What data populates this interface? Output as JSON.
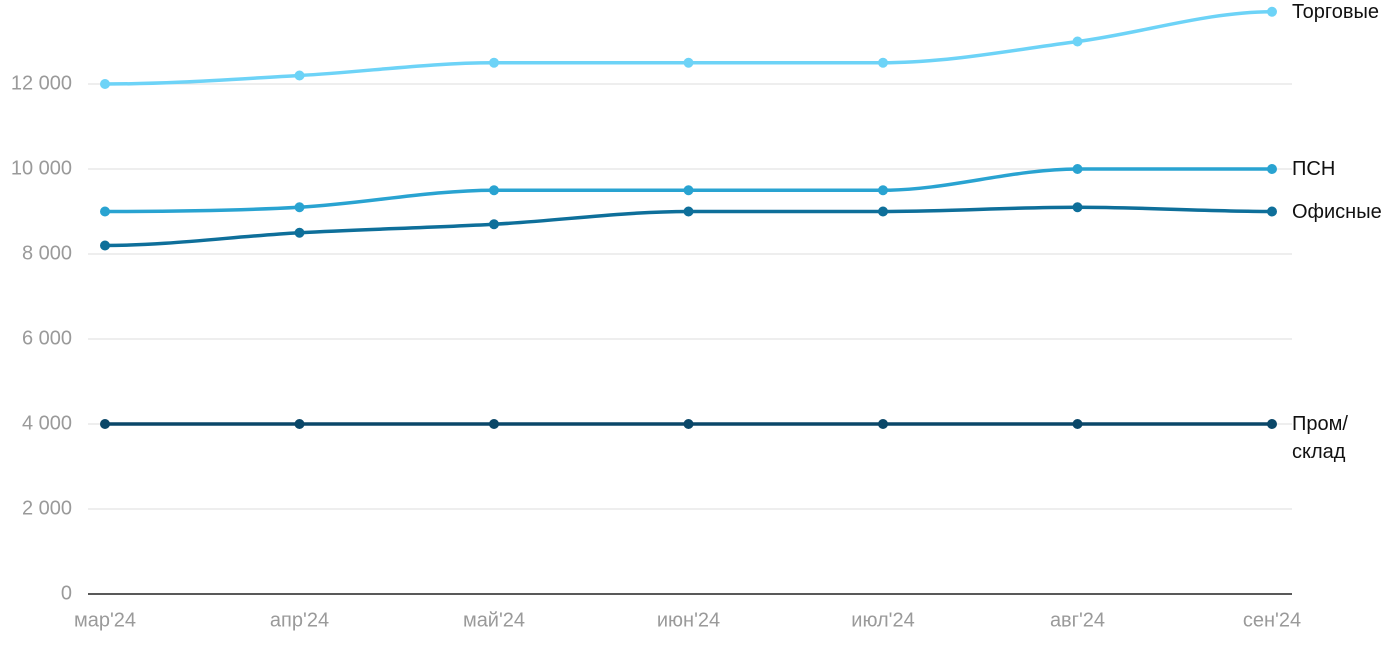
{
  "chart_data": {
    "type": "line",
    "categories": [
      "мар'24",
      "апр'24",
      "май'24",
      "июн'24",
      "июл'24",
      "авг'24",
      "сен'24"
    ],
    "series": [
      {
        "name": "Торговые",
        "color": "#6dd3f7",
        "values": [
          12000,
          12200,
          12500,
          12500,
          12500,
          13000,
          13700
        ]
      },
      {
        "name": "ПСН",
        "color": "#29a3d1",
        "values": [
          9000,
          9100,
          9500,
          9500,
          9500,
          10000,
          10000
        ]
      },
      {
        "name": "Офисные",
        "color": "#0e6f9a",
        "values": [
          8200,
          8500,
          8700,
          9000,
          9000,
          9100,
          9000
        ]
      },
      {
        "name": "Пром/\nсклад",
        "color": "#0a4768",
        "values": [
          4000,
          4000,
          4000,
          4000,
          4000,
          4000,
          4000
        ]
      }
    ],
    "ylim": [
      0,
      14000
    ],
    "yticks": [
      0,
      {
        "value": 2000,
        "label": "2 000"
      },
      {
        "value": 4000,
        "label": "4 000"
      },
      {
        "value": 6000,
        "label": "6 000"
      },
      {
        "value": 8000,
        "label": "8 000"
      },
      {
        "value": 10000,
        "label": "10 000"
      },
      {
        "value": 12000,
        "label": "12 000"
      }
    ],
    "grid": true
  }
}
